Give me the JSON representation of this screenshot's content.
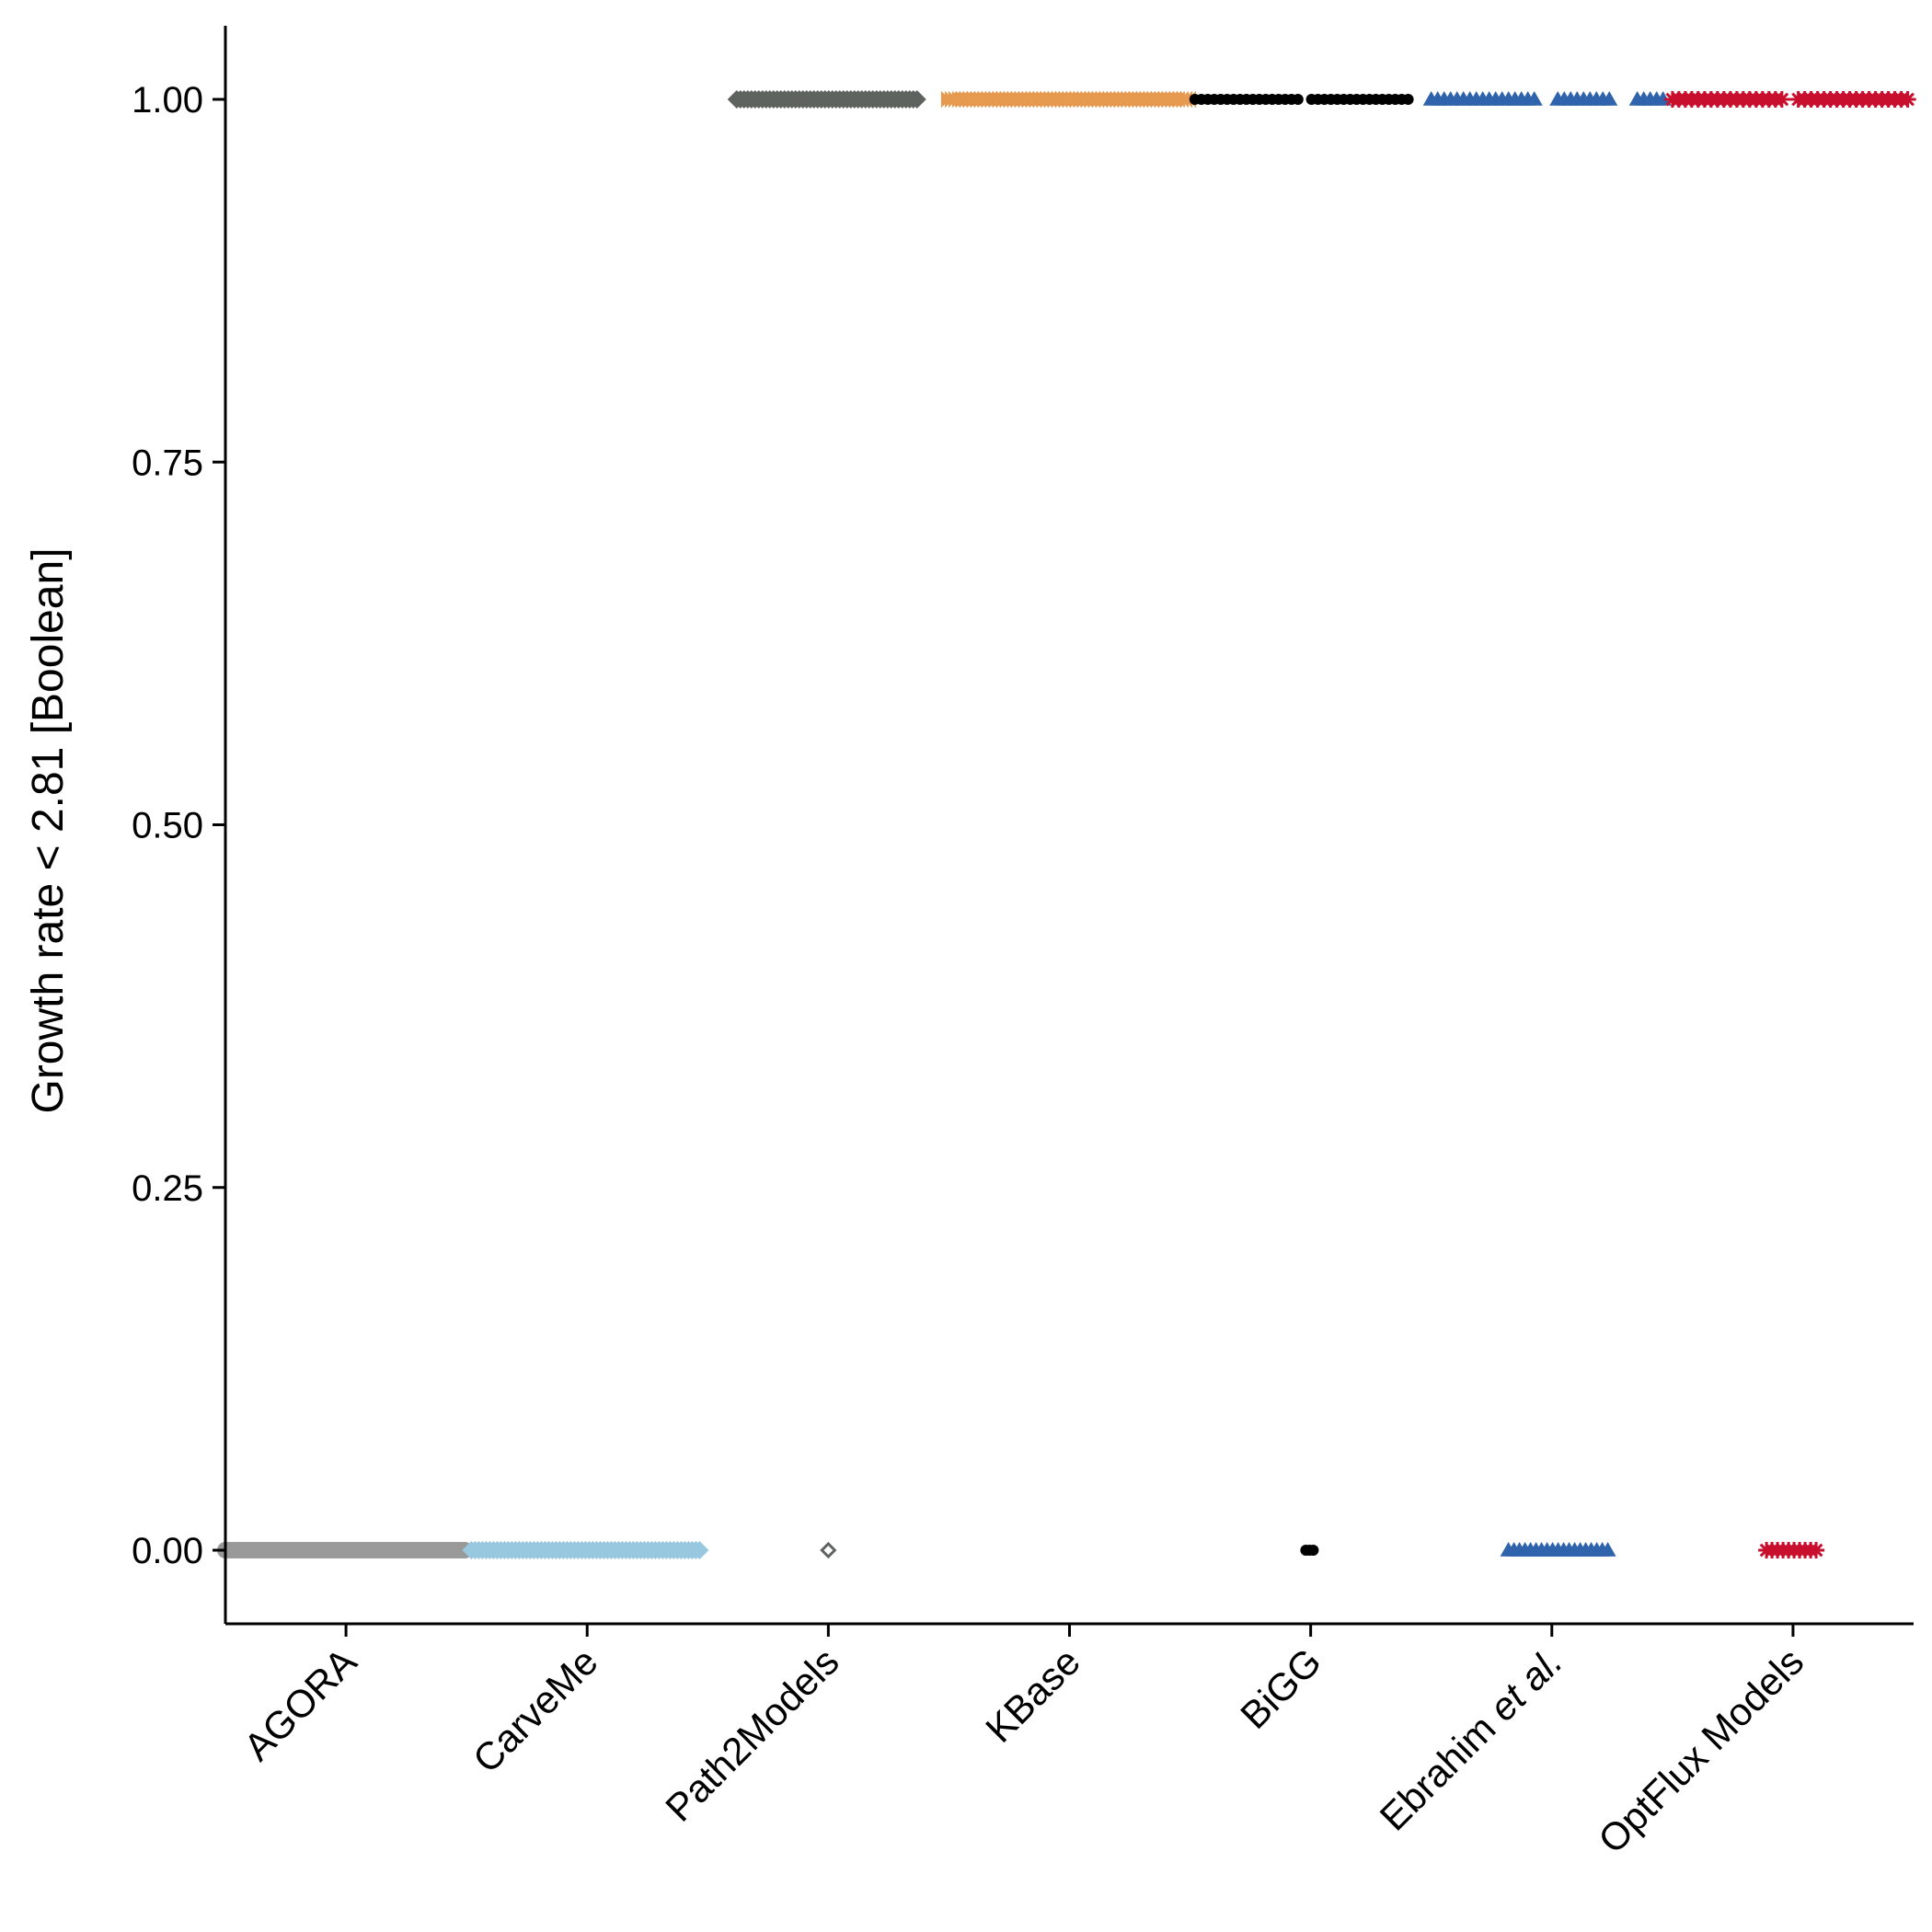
{
  "chart_data": {
    "type": "scatter",
    "title": "",
    "xlabel": "",
    "ylabel": "Growth rate < 2.81 [Boolean]",
    "ylim": [
      -0.05,
      1.05
    ],
    "yticks": [
      0,
      0.25,
      0.5,
      0.75,
      1
    ],
    "ytick_labels": [
      "0.00",
      "0.25",
      "0.50",
      "0.75",
      "1.00"
    ],
    "grid": false,
    "legend": "none",
    "categories": [
      {
        "parts": [
          {
            "text": "AGORA",
            "italic": false
          }
        ]
      },
      {
        "parts": [
          {
            "text": "CarveMe",
            "italic": false
          }
        ]
      },
      {
        "parts": [
          {
            "text": "Path2Models",
            "italic": false
          }
        ]
      },
      {
        "parts": [
          {
            "text": "KBase",
            "italic": false
          }
        ]
      },
      {
        "parts": [
          {
            "text": "BiGG",
            "italic": false
          }
        ]
      },
      {
        "parts": [
          {
            "text": "Ebrahim ",
            "italic": false
          },
          {
            "text": "et al.",
            "italic": true
          }
        ]
      },
      {
        "parts": [
          {
            "text": "OptFlux Models",
            "italic": false
          }
        ]
      }
    ],
    "series": [
      {
        "category_index": 0,
        "marker": "circle",
        "color": "#999999",
        "clusters": [
          {
            "y": 0,
            "jitter_min": -0.5,
            "jitter_max": 0.5,
            "style": "dense"
          }
        ]
      },
      {
        "category_index": 1,
        "marker": "diamond-filled",
        "color": "#98c8df",
        "clusters": [
          {
            "y": 0,
            "jitter_min": -0.48,
            "jitter_max": 0.48,
            "style": "dense"
          }
        ]
      },
      {
        "category_index": 2,
        "marker": "diamond-filled",
        "color": "#5f6360",
        "clusters": [
          {
            "y": 1,
            "jitter_min": -0.38,
            "jitter_max": 0.38,
            "style": "dense"
          },
          {
            "y": 0,
            "jitter_min": 0,
            "jitter_max": 0,
            "style": "single-open"
          }
        ]
      },
      {
        "category_index": 3,
        "marker": "bowtie",
        "color": "#e69a4f",
        "clusters": [
          {
            "y": 1,
            "jitter_min": -0.5,
            "jitter_max": 0.5,
            "style": "dense"
          }
        ]
      },
      {
        "category_index": 4,
        "marker": "circle-small",
        "color": "#000000",
        "clusters": [
          {
            "y": 1,
            "jitter_min": -0.48,
            "jitter_max": 0.48,
            "style": "sparse"
          },
          {
            "y": 0,
            "jitter_min": -0.02,
            "jitter_max": 0.02,
            "style": "few"
          }
        ]
      },
      {
        "category_index": 5,
        "marker": "triangle",
        "color": "#2f63ab",
        "clusters": [
          {
            "y": 1,
            "jitter_min": -0.5,
            "jitter_max": 0.48,
            "style": "sparse"
          },
          {
            "y": 0,
            "jitter_min": -0.18,
            "jitter_max": 0.24,
            "style": "medium"
          }
        ]
      },
      {
        "category_index": 6,
        "marker": "star",
        "color": "#c8102e",
        "clusters": [
          {
            "y": 1,
            "jitter_min": -0.5,
            "jitter_max": 0.5,
            "style": "sparse"
          },
          {
            "y": 0,
            "jitter_min": -0.11,
            "jitter_max": 0.11,
            "style": "medium"
          }
        ]
      }
    ]
  }
}
